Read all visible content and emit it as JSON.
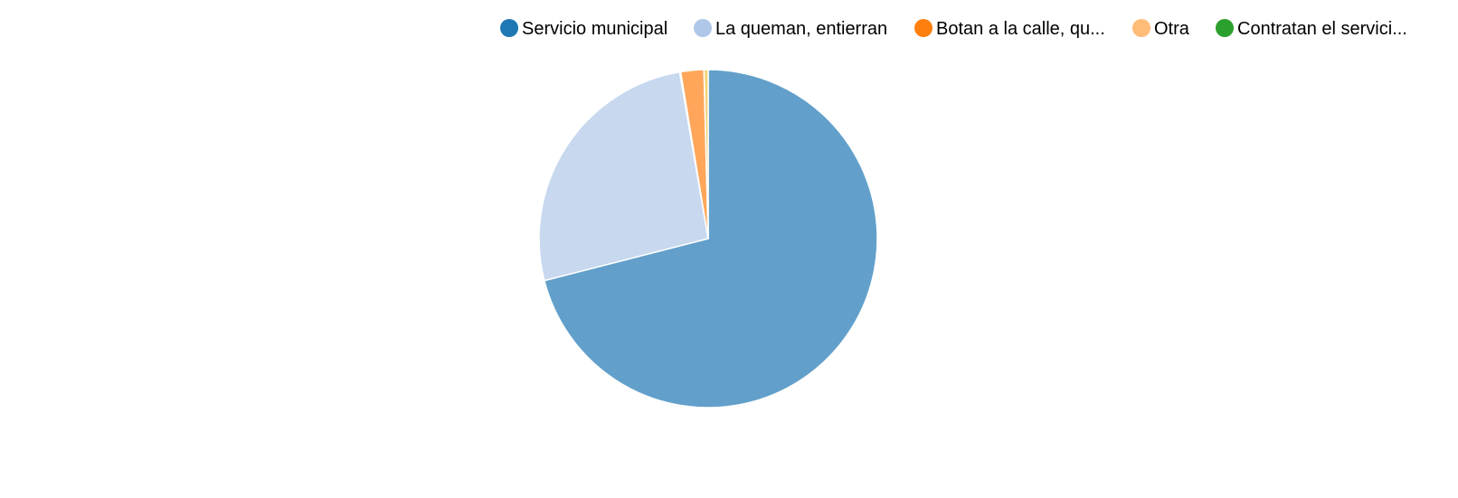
{
  "chart_data": {
    "type": "pie",
    "title": "",
    "legend_position": "top",
    "series": [
      {
        "name": "Servicio municipal",
        "value": 71.0,
        "color": "#1f77b4",
        "slice_color": "#62a0cb"
      },
      {
        "name": "La queman, entierran",
        "value": 26.3,
        "color": "#aec7e8",
        "slice_color": "#c7d8ef"
      },
      {
        "name": "Botan a la calle, qu...",
        "value": 0.1,
        "color": "#ff7f0e",
        "slice_color": "#ffa65b"
      },
      {
        "name": "Otra",
        "value": 2.2,
        "color": "#ffbb78",
        "slice_color": "#ffa65b"
      },
      {
        "name": "Contratan el servici...",
        "value": 0.4,
        "color": "#2ca02c",
        "slice_color": "#f5d27a"
      }
    ]
  }
}
